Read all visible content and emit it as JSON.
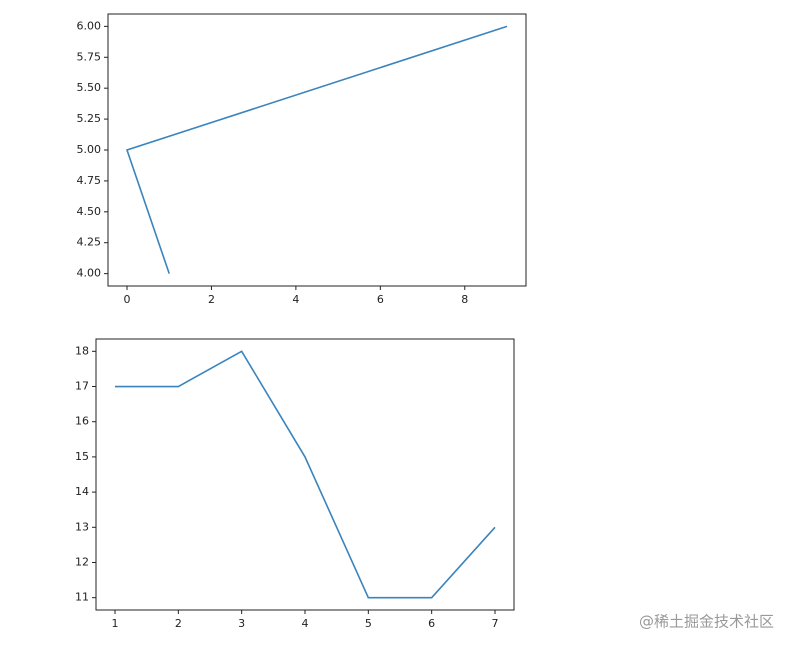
{
  "chart_data": [
    {
      "type": "line",
      "x": [
        1,
        0,
        9
      ],
      "series": [
        {
          "color": "#3a84be",
          "values": [
            4,
            5,
            6
          ]
        }
      ],
      "xlim": [
        -0.45,
        9.45
      ],
      "ylim": [
        3.9,
        6.1
      ],
      "xticks": [
        0,
        2,
        4,
        6,
        8
      ],
      "yticks": [
        {
          "value": 4,
          "label": "4.00"
        },
        {
          "value": 4.25,
          "label": "4.25"
        },
        {
          "value": 4.5,
          "label": "4.50"
        },
        {
          "value": 4.75,
          "label": "4.75"
        },
        {
          "value": 5,
          "label": "5.00"
        },
        {
          "value": 5.25,
          "label": "5.25"
        },
        {
          "value": 5.5,
          "label": "5.50"
        },
        {
          "value": 5.75,
          "label": "5.75"
        },
        {
          "value": 6,
          "label": "6.00"
        }
      ]
    },
    {
      "type": "line",
      "x": [
        1,
        2,
        3,
        4,
        5,
        6,
        7
      ],
      "series": [
        {
          "color": "#3a84be",
          "values": [
            17,
            17,
            18,
            15,
            11,
            11,
            13
          ]
        }
      ],
      "xlim": [
        0.7,
        7.3
      ],
      "ylim": [
        10.65,
        18.35
      ],
      "xticks": [
        1,
        2,
        3,
        4,
        5,
        6,
        7
      ],
      "yticks": [
        11,
        12,
        13,
        14,
        15,
        16,
        17,
        18
      ]
    }
  ],
  "watermark": "@稀土掘金技术社区"
}
